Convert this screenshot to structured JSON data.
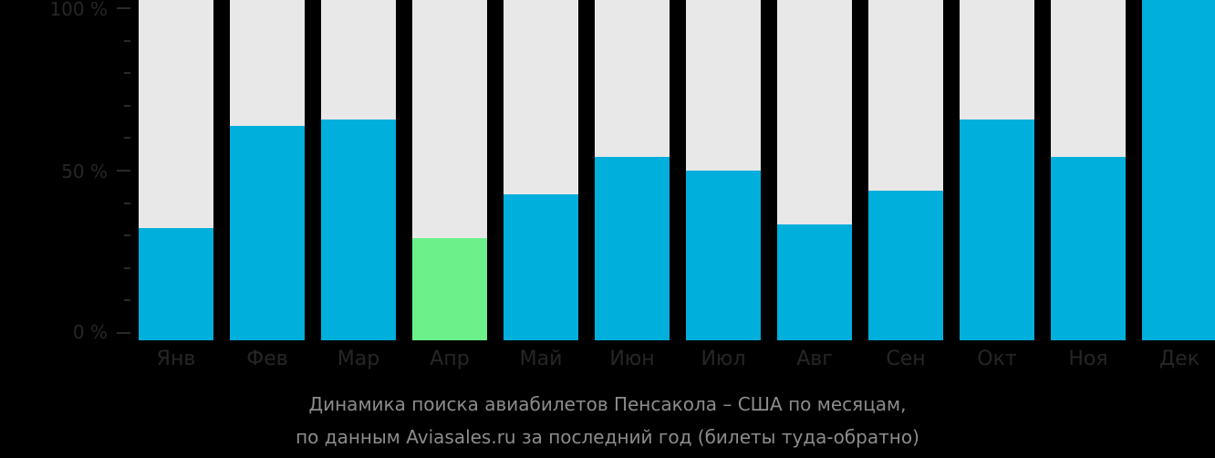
{
  "chart_data": {
    "type": "bar",
    "title": "Динамика поиска авиабилетов Пенсакола – США по месяцам,",
    "subtitle": "по данным Aviasales.ru за последний год (билеты туда-обратно)",
    "xlabel": "",
    "ylabel": "",
    "ylim": [
      0,
      100
    ],
    "yticks": [
      "0 %",
      "50 %",
      "100 %"
    ],
    "categories": [
      "Янв",
      "Фев",
      "Мар",
      "Апр",
      "Май",
      "Июн",
      "Июл",
      "Авг",
      "Сен",
      "Окт",
      "Ноя",
      "Дек"
    ],
    "values": [
      33,
      63,
      65,
      30,
      43,
      54,
      50,
      34,
      44,
      65,
      54,
      100
    ],
    "highlight_index": 3,
    "grid": false,
    "legend": null
  },
  "colors": {
    "bar": "#00afdb",
    "highlight": "#6cf18a",
    "bar_background": "#e8e8e8"
  },
  "axis": {
    "y_top": "100 %",
    "y_mid": "50 %",
    "y_bottom": "0 %"
  },
  "caption": {
    "line1": "Динамика поиска авиабилетов Пенсакола – США по месяцам,",
    "line2": "по данным Aviasales.ru за последний год (билеты туда-обратно)"
  }
}
